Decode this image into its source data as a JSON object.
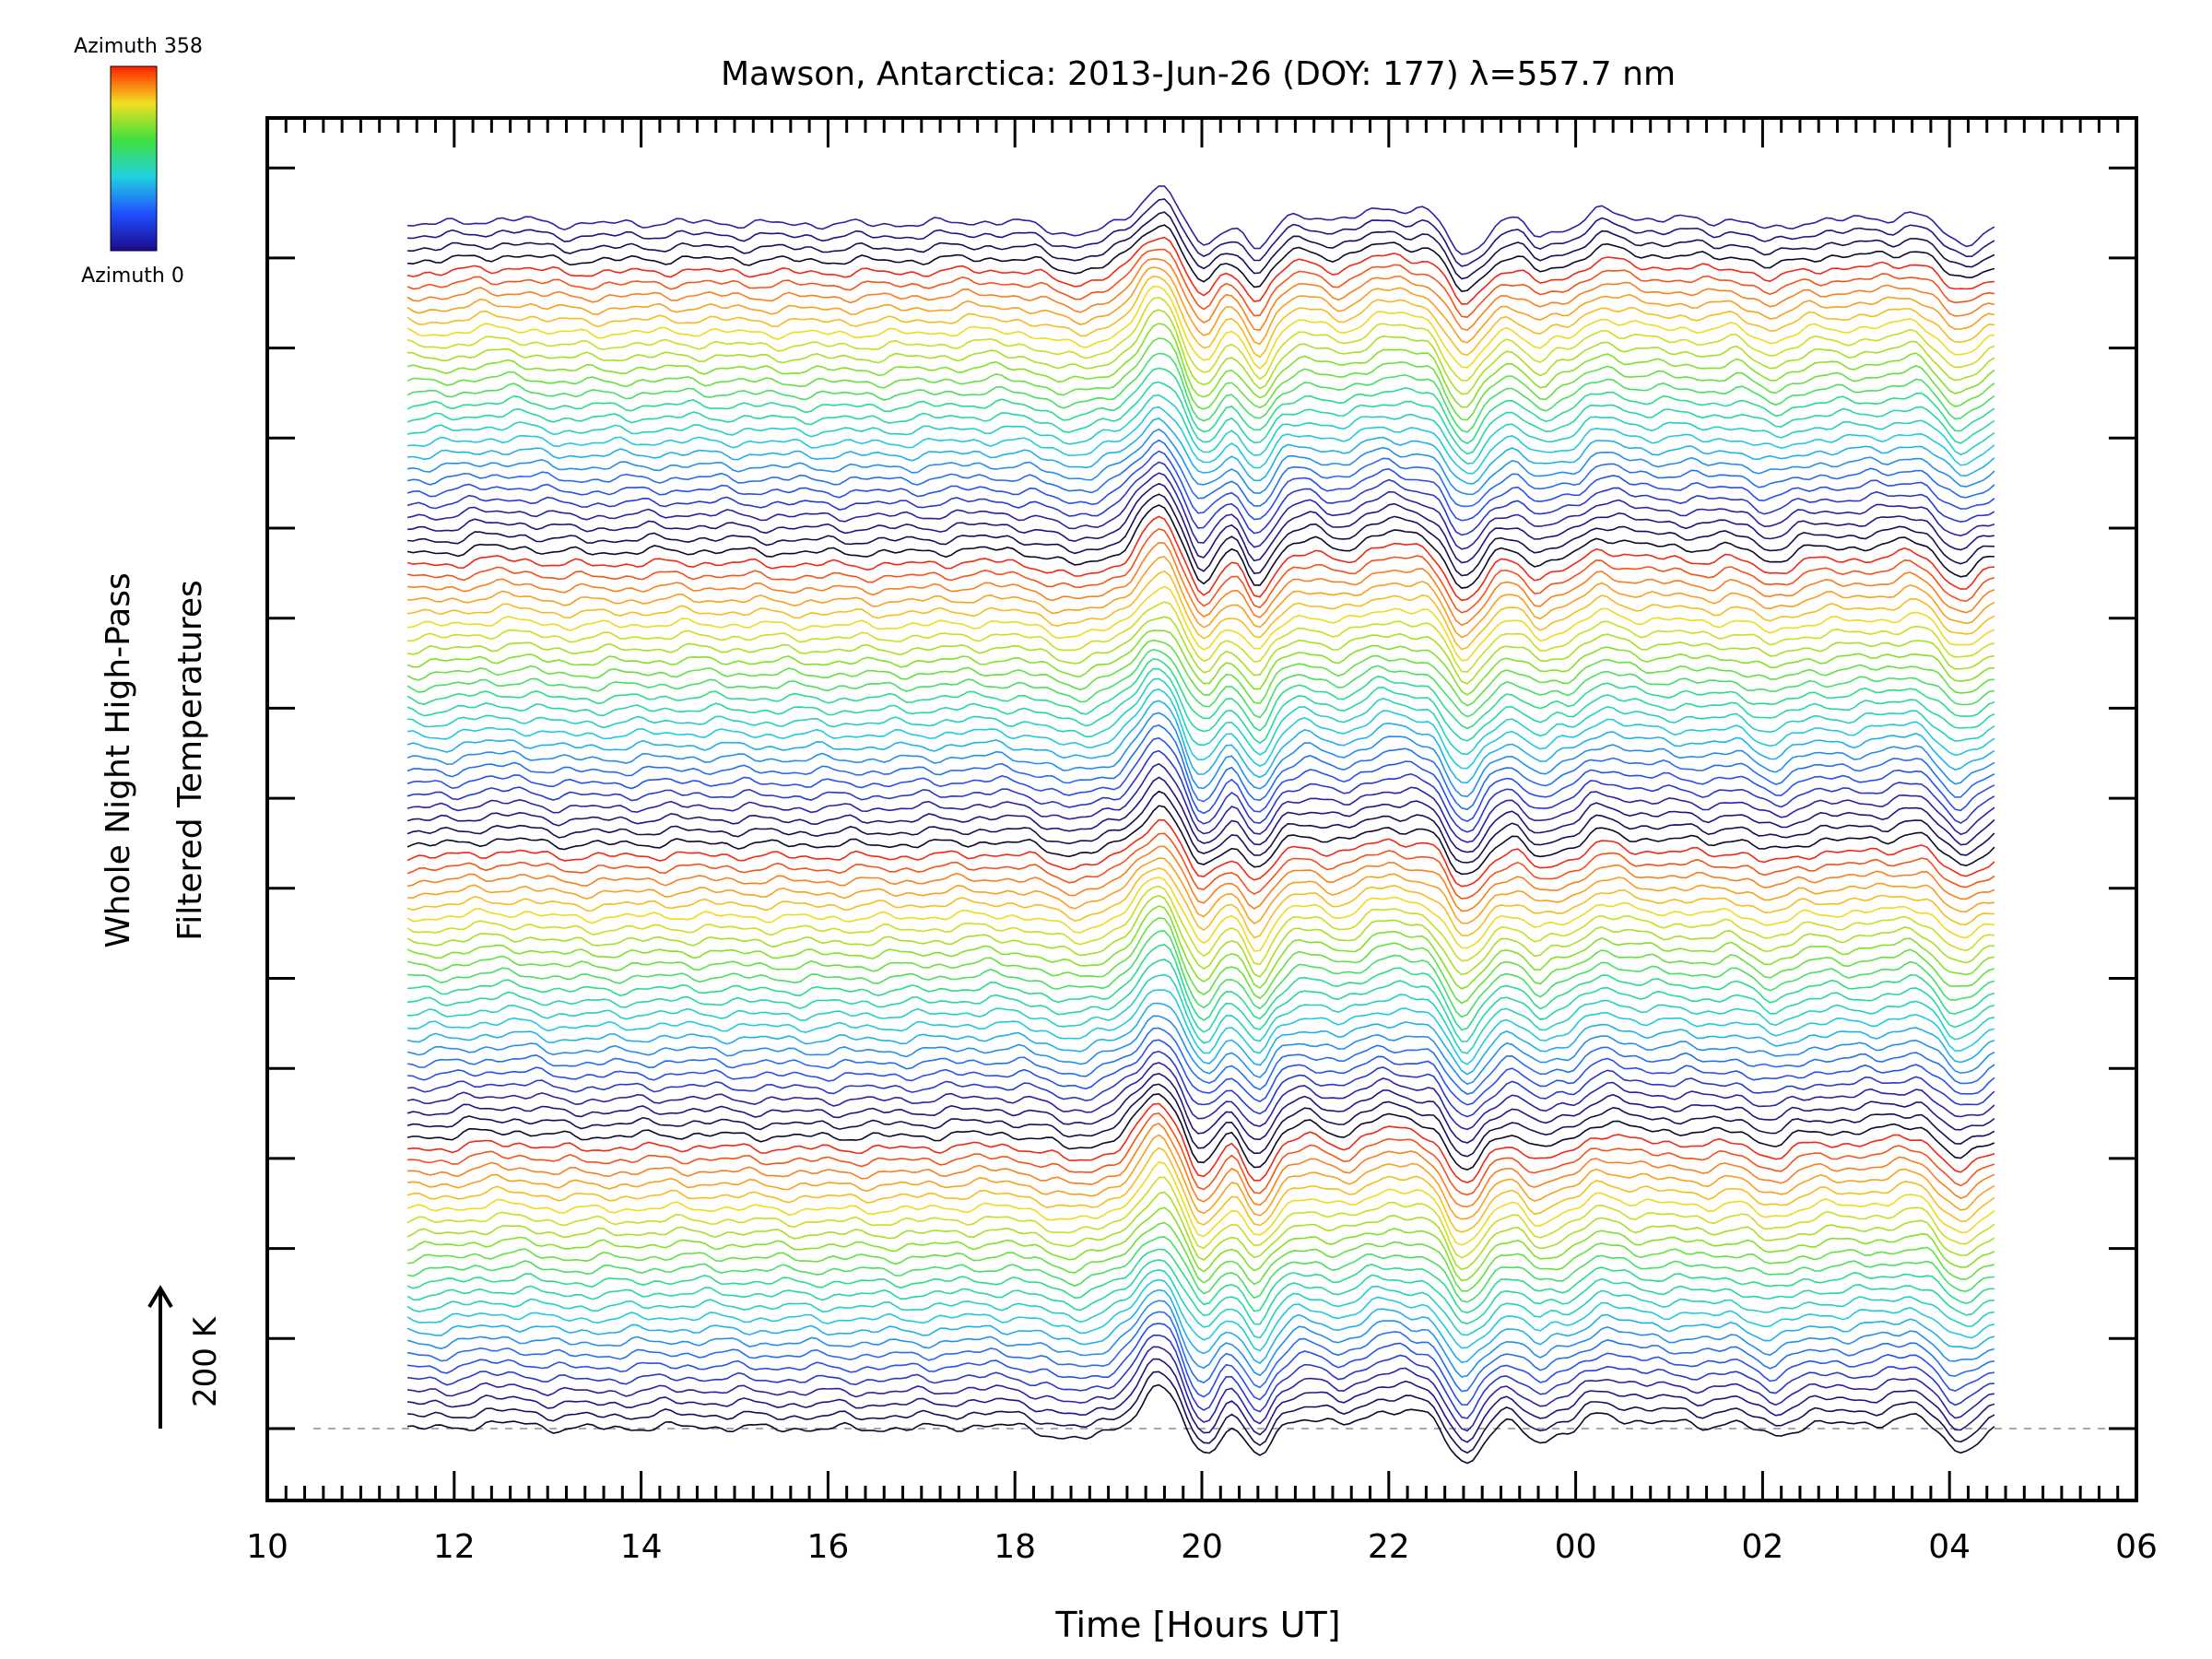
{
  "chart_data": {
    "type": "line",
    "title": "Mawson, Antarctica: 2013-Jun-26 (DOY: 177) λ=557.7 nm",
    "xlabel": "Time [Hours UT]",
    "ylabel_line1": "Whole Night High-Pass",
    "ylabel_line2": "Filtered Temperatures",
    "x_ticks": [
      "10",
      "12",
      "14",
      "16",
      "18",
      "20",
      "22",
      "00",
      "02",
      "04",
      "06"
    ],
    "xlim": [
      10,
      30
    ],
    "x_data_range": [
      11.5,
      28.5
    ],
    "scale_bar_label": "200 K",
    "colorbar": {
      "top_label": "Azimuth 358",
      "bottom_label": "Azimuth 0",
      "azimuth_range": [
        0,
        358
      ],
      "colormap": "rainbow"
    },
    "stacked_traces": 100,
    "grid": false
  }
}
